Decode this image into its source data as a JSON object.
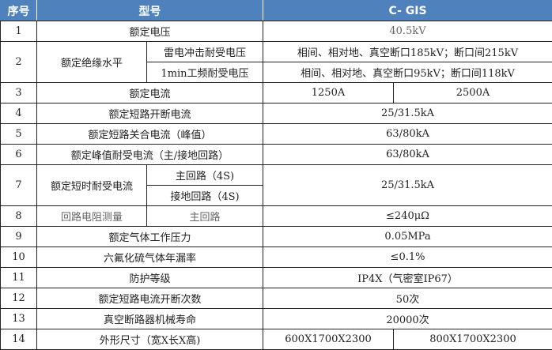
{
  "header": {
    "no": "序号",
    "model": "型号",
    "value": "C- GIS",
    "bg_color": "#4f81bd"
  },
  "rows": {
    "r1": {
      "no": "1",
      "label": "额定电压",
      "value": "40.5kV"
    },
    "r2": {
      "no": "2",
      "label": "额定绝缘水平",
      "sub1": "雷电冲击耐受电压",
      "val1": "相间、相对地、真空断口185kV；断口间215kV",
      "sub2": "1min工频耐受电压",
      "val2": "相间、相对地、真空断口95kV；断口间118kV"
    },
    "r3": {
      "no": "3",
      "label": "额定电流",
      "val_a": "1250A",
      "val_b": "2500A"
    },
    "r4": {
      "no": "4",
      "label": "额定短路开断电流",
      "value": "25/31.5kA"
    },
    "r5": {
      "no": "5",
      "label": "额定短路关合电流（峰值）",
      "value": "63/80kA"
    },
    "r6": {
      "no": "6",
      "label": "额定峰值耐受电流（主/接地回路）",
      "value": "63/80kA"
    },
    "r7": {
      "no": "7",
      "label": "额定短时耐受电流",
      "sub1": "主回路（4S)",
      "sub2": "接地回路（4S)",
      "value": "25/31.5kA"
    },
    "r8": {
      "no": "8",
      "label": "回路电阻测量",
      "sub": "主回路",
      "value": "≤240μΩ"
    },
    "r9": {
      "no": "9",
      "label": "额定气体工作压力",
      "value": "0.05MPa"
    },
    "r10": {
      "no": "10",
      "label": "六氟化硫气体年漏率",
      "value": "≤0.1%"
    },
    "r11": {
      "no": "11",
      "label": "防护等级",
      "value": "IP4X（气密室IP67）"
    },
    "r12": {
      "no": "12",
      "label": "额定短路电流开断次数",
      "value": "50次"
    },
    "r13": {
      "no": "13",
      "label": "真空断路器机械寿命",
      "value": "20000次"
    },
    "r14": {
      "no": "14",
      "label": "外形尺寸（宽X长X高)",
      "val_a": "600X1700X2300",
      "val_b": "800X1700X2300"
    }
  }
}
